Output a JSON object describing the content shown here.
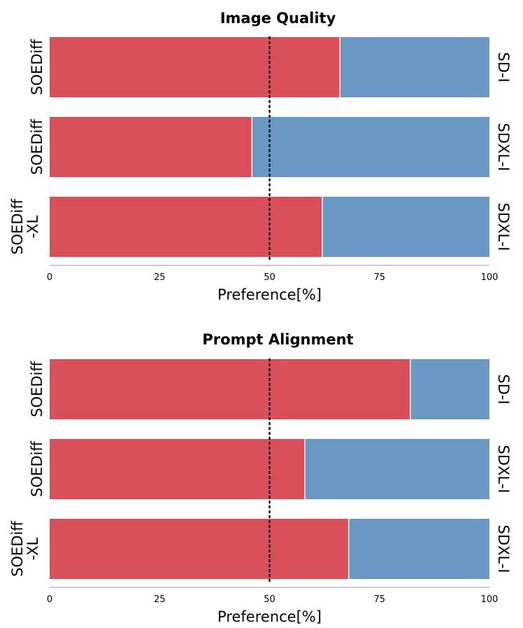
{
  "colors": {
    "left": "#d9505b",
    "right": "#6998c4",
    "axis": "#bbbbbb",
    "reference": "#000000"
  },
  "chart_data": [
    {
      "type": "bar",
      "orientation": "horizontal-stacked",
      "title": "Image Quality",
      "xlabel": "Preference[%]",
      "xlim": [
        0,
        100
      ],
      "xticks": [
        "0",
        "25",
        "50",
        "75",
        "100"
      ],
      "reference_line": 50,
      "rows": [
        {
          "left_label": [
            "SOEDiff"
          ],
          "right_label": "SD-I",
          "value": 66
        },
        {
          "left_label": [
            "SOEDiff"
          ],
          "right_label": "SDXL-I",
          "value": 46
        },
        {
          "left_label": [
            "SOEDiff",
            "-XL"
          ],
          "right_label": "SDXL-I",
          "value": 62
        }
      ]
    },
    {
      "type": "bar",
      "orientation": "horizontal-stacked",
      "title": "Prompt Alignment",
      "xlabel": "Preference[%]",
      "xlim": [
        0,
        100
      ],
      "xticks": [
        "0",
        "25",
        "50",
        "75",
        "100"
      ],
      "reference_line": 50,
      "rows": [
        {
          "left_label": [
            "SOEDiff"
          ],
          "right_label": "SD-I",
          "value": 82
        },
        {
          "left_label": [
            "SOEDiff"
          ],
          "right_label": "SDXL-I",
          "value": 58
        },
        {
          "left_label": [
            "SOEDiff",
            "-XL"
          ],
          "right_label": "SDXL-I",
          "value": 68
        }
      ]
    }
  ]
}
